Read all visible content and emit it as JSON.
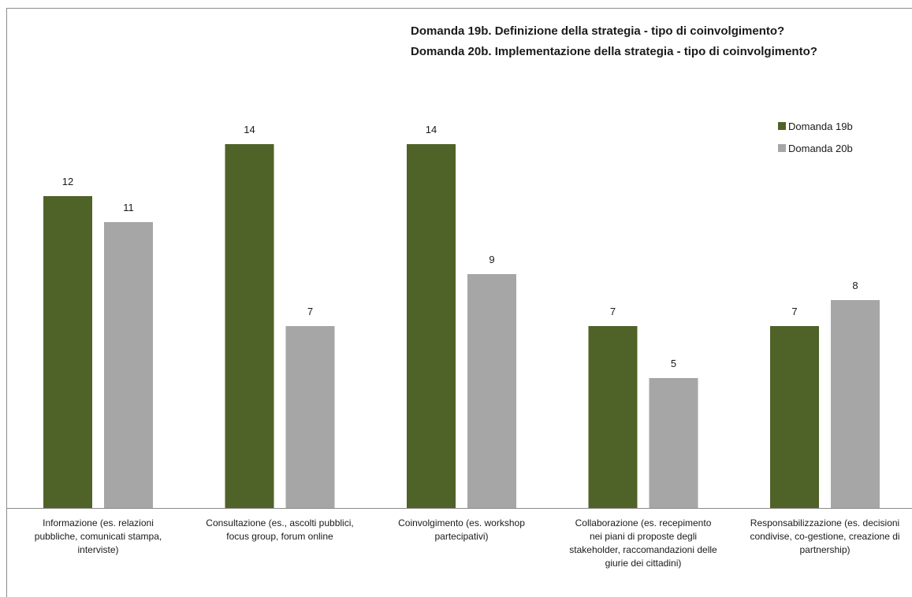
{
  "chart_data": {
    "type": "bar",
    "title_lines": [
      "Domanda 19b. Definizione della strategia - tipo di coinvolgimento?",
      "Domanda 20b. Implementazione della strategia - tipo di coinvolgimento?"
    ],
    "categories": [
      [
        "Informazione (es. relazioni",
        "pubbliche, comunicati stampa,",
        "interviste)"
      ],
      [
        "Consultazione (es., ascolti pubblici,",
        "focus group, forum online"
      ],
      [
        "Coinvolgimento (es. workshop",
        "partecipativi)"
      ],
      [
        "Collaborazione (es. recepimento",
        "nei piani di proposte degli",
        "stakeholder, raccomandazioni delle",
        "giurie dei cittadini)"
      ],
      [
        "Responsabilizzazione (es. decisioni",
        "condivise, co-gestione, creazione di",
        "partnership)"
      ]
    ],
    "series": [
      {
        "name": "Domanda 19b",
        "color": "#4f6228",
        "values": [
          12,
          14,
          14,
          7,
          7
        ]
      },
      {
        "name": "Domanda 20b",
        "color": "#a6a6a6",
        "values": [
          11,
          7,
          9,
          5,
          8
        ]
      }
    ],
    "ylim": [
      0,
      14
    ],
    "grid": false,
    "legend_position": "top-right"
  }
}
